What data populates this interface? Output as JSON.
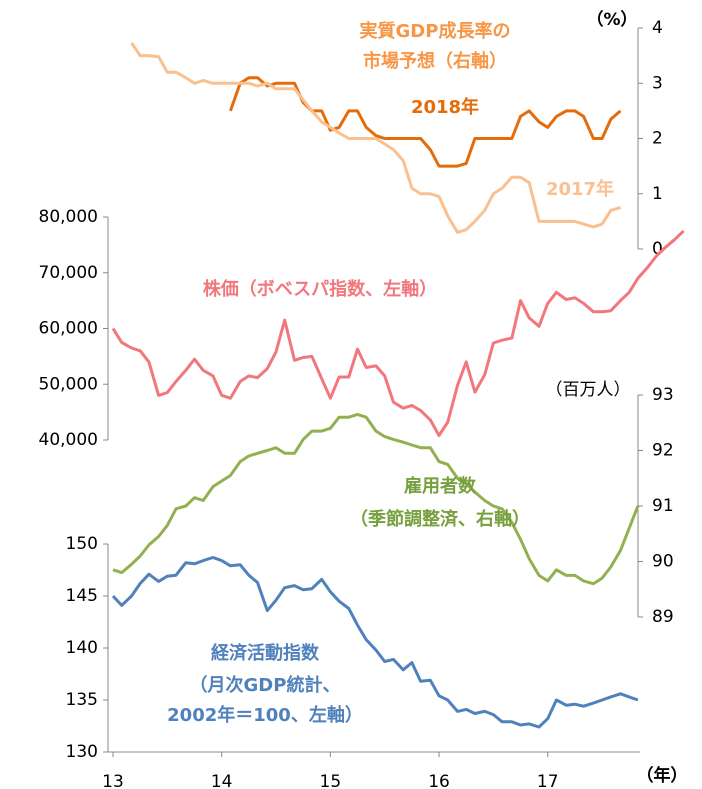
{
  "chart_data": [
    {
      "type": "line",
      "label": [
        "実質GDP成長率の",
        "市場予想（右軸）"
      ],
      "label_color": "#f79646",
      "unit": "（%）",
      "yaxis_side": "right",
      "ylim": [
        0,
        4
      ],
      "yticks": [
        0,
        1,
        2,
        3,
        4
      ],
      "xlim": [
        13,
        18.3
      ],
      "x": [
        13.17,
        13.25,
        13.33,
        13.42,
        13.5,
        13.58,
        13.67,
        13.75,
        13.83,
        13.92,
        14,
        14.08,
        14.17,
        14.25,
        14.33,
        14.42,
        14.5,
        14.58,
        14.67,
        14.75,
        14.83,
        14.92,
        15,
        15.08,
        15.17,
        15.25,
        15.33,
        15.42,
        15.5,
        15.58,
        15.67,
        15.75,
        15.83,
        15.92,
        16,
        16.08,
        16.17,
        16.25,
        16.33,
        16.42,
        16.5,
        16.58,
        16.67,
        16.75,
        16.83,
        16.92,
        17,
        17.08,
        17.17,
        17.25,
        17.33,
        17.42,
        17.5,
        17.58,
        17.67
      ],
      "series": [
        {
          "name": "2018年",
          "color": "#e46c0a",
          "values": [
            null,
            null,
            null,
            null,
            null,
            null,
            null,
            null,
            null,
            null,
            null,
            2.5,
            3.0,
            3.1,
            3.1,
            2.95,
            3.0,
            3.0,
            3.0,
            2.65,
            2.5,
            2.5,
            2.15,
            2.2,
            2.5,
            2.5,
            2.2,
            2.05,
            2.0,
            2.0,
            2.0,
            2.0,
            2.0,
            1.8,
            1.5,
            1.5,
            1.5,
            1.55,
            2.0,
            2.0,
            2.0,
            2.0,
            2.0,
            2.4,
            2.5,
            2.3,
            2.2,
            2.4,
            2.5,
            2.5,
            2.4,
            2.0,
            2.0,
            2.35,
            2.5
          ]
        },
        {
          "name": "2017年",
          "color": "#fac090",
          "values": [
            3.73,
            3.5,
            3.5,
            3.48,
            3.2,
            3.2,
            3.1,
            3.0,
            3.05,
            3.0,
            3.0,
            3.0,
            3.0,
            3.0,
            2.95,
            3.0,
            2.9,
            2.9,
            2.9,
            2.7,
            2.5,
            2.3,
            2.2,
            2.1,
            2.0,
            2.0,
            2.0,
            2.0,
            1.9,
            1.8,
            1.6,
            1.1,
            1.0,
            1.0,
            0.95,
            0.6,
            0.3,
            0.35,
            0.5,
            0.7,
            1.0,
            1.1,
            1.3,
            1.3,
            1.2,
            0.5,
            0.5,
            0.5,
            0.5,
            0.5,
            0.45,
            0.4,
            0.45,
            0.7,
            0.75
          ]
        }
      ]
    },
    {
      "type": "line",
      "label": [
        "株価（ボベスパ指数、左軸）"
      ],
      "label_color": "#f2777d",
      "yaxis_side": "left",
      "ylim": [
        40000,
        80000
      ],
      "xlim": [
        13,
        18.3
      ],
      "yticks": [
        {
          "value": 40000,
          "label": "40,000"
        },
        {
          "value": 50000,
          "label": "50,000"
        },
        {
          "value": 60000,
          "label": "60,000"
        },
        {
          "value": 70000,
          "label": "70,000"
        },
        {
          "value": 80000,
          "label": "80,000"
        }
      ],
      "x": [
        13,
        13.08,
        13.17,
        13.25,
        13.33,
        13.42,
        13.5,
        13.58,
        13.67,
        13.75,
        13.83,
        13.92,
        14,
        14.08,
        14.17,
        14.25,
        14.33,
        14.42,
        14.5,
        14.58,
        14.67,
        14.75,
        14.83,
        14.92,
        15,
        15.08,
        15.17,
        15.25,
        15.33,
        15.42,
        15.5,
        15.58,
        15.67,
        15.75,
        15.83,
        15.92,
        16,
        16.08,
        16.17,
        16.25,
        16.33,
        16.42,
        16.5,
        16.58,
        16.67,
        16.75,
        16.83,
        16.92,
        17,
        17.08,
        17.17,
        17.25,
        17.33,
        17.42,
        17.5,
        17.58,
        17.67,
        17.75,
        17.83,
        17.92,
        18,
        18.08,
        18.17,
        18.25
      ],
      "series": [
        {
          "color": "#f2777d",
          "values": [
            60000,
            57500,
            56500,
            56000,
            54000,
            48000,
            48500,
            50500,
            52500,
            54500,
            52500,
            51500,
            48000,
            47500,
            50500,
            51500,
            51200,
            52800,
            55800,
            61500,
            54300,
            54800,
            55000,
            51000,
            47500,
            51300,
            51300,
            56300,
            53000,
            53300,
            51500,
            46800,
            45700,
            46200,
            45300,
            43600,
            40800,
            43200,
            49800,
            54000,
            48600,
            51700,
            57400,
            57900,
            58300,
            65000,
            61900,
            60400,
            64500,
            66500,
            65200,
            65500,
            64500,
            63000,
            63000,
            63200,
            65000,
            66500,
            69000,
            71000,
            73000,
            74500,
            76000,
            77500
          ]
        }
      ]
    },
    {
      "type": "line",
      "label": [
        "雇用者数",
        "（季節調整済、右軸）"
      ],
      "label_color": "#77a03c",
      "unit": "（百万人）",
      "yaxis_side": "right",
      "ylim": [
        89,
        93
      ],
      "yticks": [
        89,
        90,
        91,
        92,
        93
      ],
      "xlim": [
        13,
        18.3
      ],
      "x": [
        13,
        13.08,
        13.17,
        13.25,
        13.33,
        13.42,
        13.5,
        13.58,
        13.67,
        13.75,
        13.83,
        13.92,
        14,
        14.08,
        14.17,
        14.25,
        14.33,
        14.42,
        14.5,
        14.58,
        14.67,
        14.75,
        14.83,
        14.92,
        15,
        15.08,
        15.17,
        15.25,
        15.33,
        15.42,
        15.5,
        15.58,
        15.67,
        15.75,
        15.83,
        15.92,
        16,
        16.08,
        16.17,
        16.25,
        16.33,
        16.42,
        16.5,
        16.58,
        16.67,
        16.75,
        16.83,
        16.92,
        17,
        17.08,
        17.17,
        17.25,
        17.33,
        17.42,
        17.5,
        17.58,
        17.67,
        17.75,
        17.83
      ],
      "series": [
        {
          "color": "#92b050",
          "values": [
            89.85,
            89.8,
            89.95,
            90.1,
            90.3,
            90.45,
            90.65,
            90.95,
            91.0,
            91.15,
            91.1,
            91.35,
            91.45,
            91.55,
            91.8,
            91.9,
            91.95,
            92.0,
            92.05,
            91.95,
            91.95,
            92.2,
            92.35,
            92.35,
            92.4,
            92.6,
            92.6,
            92.65,
            92.6,
            92.35,
            92.25,
            92.2,
            92.15,
            92.1,
            92.05,
            92.05,
            91.8,
            91.75,
            91.5,
            91.4,
            91.25,
            91.1,
            91.0,
            90.95,
            90.7,
            90.4,
            90.05,
            89.75,
            89.65,
            89.85,
            89.75,
            89.75,
            89.65,
            89.6,
            89.7,
            89.9,
            90.2,
            90.6,
            91.0
          ]
        }
      ]
    },
    {
      "type": "line",
      "label": [
        "経済活動指数",
        "（月次GDP統計、",
        "2002年＝100、左軸）"
      ],
      "label_color": "#4f81bd",
      "unit": "（年）",
      "yaxis_side": "left",
      "ylim": [
        130,
        150
      ],
      "yticks": [
        130,
        135,
        140,
        145,
        150
      ],
      "xlim": [
        13,
        18.3
      ],
      "xticks": [
        13,
        14,
        15,
        16,
        17
      ],
      "x": [
        13,
        13.08,
        13.17,
        13.25,
        13.33,
        13.42,
        13.5,
        13.58,
        13.67,
        13.75,
        13.83,
        13.92,
        14,
        14.08,
        14.17,
        14.25,
        14.33,
        14.42,
        14.5,
        14.58,
        14.67,
        14.75,
        14.83,
        14.92,
        15,
        15.08,
        15.17,
        15.25,
        15.33,
        15.42,
        15.5,
        15.58,
        15.67,
        15.75,
        15.83,
        15.92,
        16,
        16.08,
        16.17,
        16.25,
        16.33,
        16.42,
        16.5,
        16.58,
        16.67,
        16.75,
        16.83,
        16.92,
        17,
        17.08,
        17.17,
        17.25,
        17.33,
        17.42,
        17.5,
        17.58,
        17.67,
        17.75,
        17.83
      ],
      "series": [
        {
          "color": "#4f81bd",
          "values": [
            145,
            144.1,
            145,
            146.2,
            147.1,
            146.4,
            146.9,
            147,
            148.2,
            148.1,
            148.4,
            148.7,
            148.4,
            147.9,
            148,
            147,
            146.3,
            143.6,
            144.6,
            145.8,
            146,
            145.6,
            145.7,
            146.6,
            145.4,
            144.5,
            143.8,
            142.2,
            140.8,
            139.8,
            138.7,
            138.9,
            137.9,
            138.6,
            136.8,
            136.9,
            135.4,
            135,
            133.9,
            134.1,
            133.7,
            133.9,
            133.6,
            132.9,
            132.9,
            132.6,
            132.7,
            132.4,
            133.2,
            135,
            134.5,
            134.6,
            134.4,
            134.7,
            135,
            135.3,
            135.6,
            135.3,
            135
          ]
        }
      ]
    }
  ]
}
